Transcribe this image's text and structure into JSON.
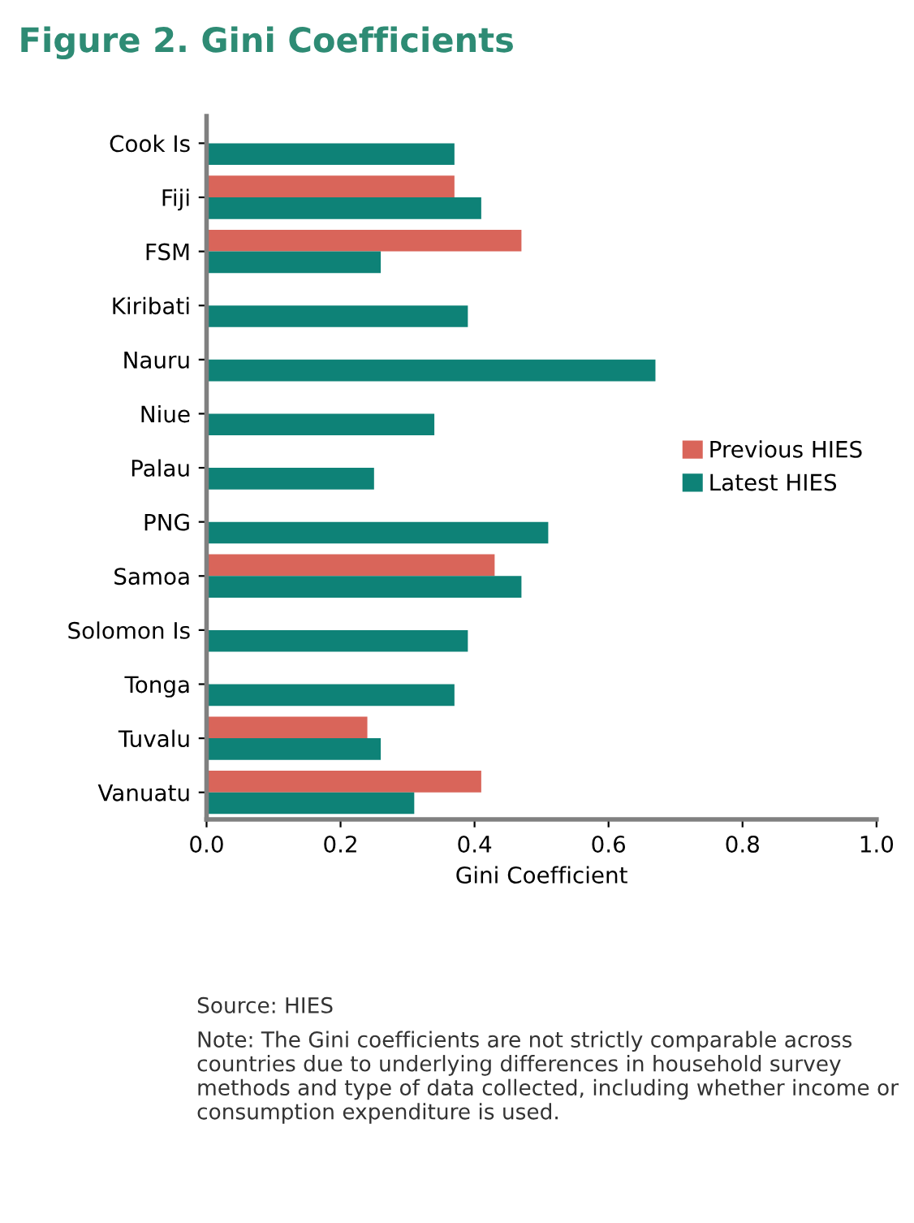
{
  "chart_data": {
    "type": "bar",
    "orientation": "horizontal",
    "title": "Figure 2. Gini Coefficients",
    "xlabel": "Gini Coefficient",
    "categories": [
      "Cook Is",
      "Fiji",
      "FSM",
      "Kiribati",
      "Nauru",
      "Niue",
      "Palau",
      "PNG",
      "Samoa",
      "Solomon Is",
      "Tonga",
      "Tuvalu",
      "Vanuatu"
    ],
    "series": [
      {
        "name": "Previous HIES",
        "color": "#d9655a",
        "values": [
          null,
          0.37,
          0.47,
          null,
          null,
          null,
          null,
          null,
          0.43,
          null,
          null,
          0.24,
          0.41
        ]
      },
      {
        "name": "Latest HIES",
        "color": "#0e8277",
        "values": [
          0.37,
          0.41,
          0.26,
          0.39,
          0.67,
          0.34,
          0.25,
          0.51,
          0.47,
          0.39,
          0.37,
          0.26,
          0.31
        ]
      }
    ],
    "xlim": [
      0,
      1
    ],
    "xticks": [
      {
        "value": 0,
        "label": "0.0"
      },
      {
        "value": 0.2,
        "label": "0.2"
      },
      {
        "value": 0.4,
        "label": "0.4"
      },
      {
        "value": 0.6,
        "label": "0.6"
      },
      {
        "value": 0.8,
        "label": "0.8"
      },
      {
        "value": 1,
        "label": "1.0"
      }
    ],
    "grid": false,
    "legend": "right",
    "annotations": [
      "Source: HIES",
      "Note: The Gini coefficients are not strictly comparable across countries due to underlying differences in household survey methods and type of data collected, including whether income or consumption expenditure is used."
    ]
  }
}
